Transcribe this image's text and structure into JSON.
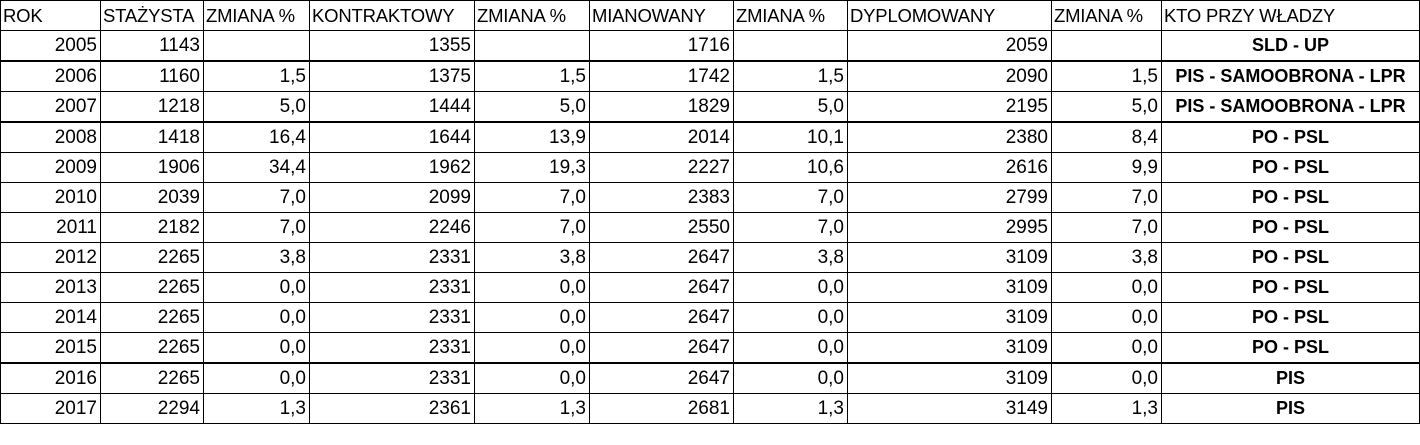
{
  "headers": [
    "ROK",
    "STAŻYSTA",
    "ZMIANA %",
    "KONTRAKTOWY",
    "ZMIANA %",
    "MIANOWANY",
    "ZMIANA %",
    "DYPLOMOWANY",
    "ZMIANA %",
    "KTO PRZY WŁADZY"
  ],
  "rows": [
    [
      "2005",
      "1143",
      "",
      "1355",
      "",
      "1716",
      "",
      "2059",
      "",
      "SLD - UP"
    ],
    [
      "2006",
      "1160",
      "1,5",
      "1375",
      "1,5",
      "1742",
      "1,5",
      "2090",
      "1,5",
      "PIS - SAMOOBRONA - LPR"
    ],
    [
      "2007",
      "1218",
      "5,0",
      "1444",
      "5,0",
      "1829",
      "5,0",
      "2195",
      "5,0",
      "PIS - SAMOOBRONA - LPR"
    ],
    [
      "2008",
      "1418",
      "16,4",
      "1644",
      "13,9",
      "2014",
      "10,1",
      "2380",
      "8,4",
      "PO - PSL"
    ],
    [
      "2009",
      "1906",
      "34,4",
      "1962",
      "19,3",
      "2227",
      "10,6",
      "2616",
      "9,9",
      "PO - PSL"
    ],
    [
      "2010",
      "2039",
      "7,0",
      "2099",
      "7,0",
      "2383",
      "7,0",
      "2799",
      "7,0",
      "PO - PSL"
    ],
    [
      "2011",
      "2182",
      "7,0",
      "2246",
      "7,0",
      "2550",
      "7,0",
      "2995",
      "7,0",
      "PO - PSL"
    ],
    [
      "2012",
      "2265",
      "3,8",
      "2331",
      "3,8",
      "2647",
      "3,8",
      "3109",
      "3,8",
      "PO - PSL"
    ],
    [
      "2013",
      "2265",
      "0,0",
      "2331",
      "0,0",
      "2647",
      "0,0",
      "3109",
      "0,0",
      "PO - PSL"
    ],
    [
      "2014",
      "2265",
      "0,0",
      "2331",
      "0,0",
      "2647",
      "0,0",
      "3109",
      "0,0",
      "PO - PSL"
    ],
    [
      "2015",
      "2265",
      "0,0",
      "2331",
      "0,0",
      "2647",
      "0,0",
      "3109",
      "0,0",
      "PO - PSL"
    ],
    [
      "2016",
      "2265",
      "0,0",
      "2331",
      "0,0",
      "2647",
      "0,0",
      "3109",
      "0,0",
      "PIS"
    ],
    [
      "2017",
      "2294",
      "1,3",
      "2361",
      "1,3",
      "2681",
      "1,3",
      "3149",
      "1,3",
      "PIS"
    ]
  ]
}
